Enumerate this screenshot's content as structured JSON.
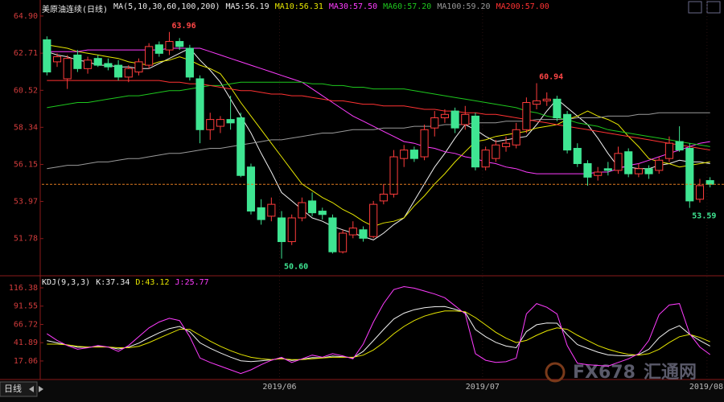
{
  "chart_data": [
    {
      "type": "candlestick",
      "title": "美原油连续(日线)",
      "indicator": "MA(5,10,30,60,100,200)",
      "ylim": [
        49.73,
        65.37
      ],
      "yticks": [
        {
          "value": 64.9,
          "label": "64.90"
        },
        62.71,
        60.52,
        58.34,
        56.15,
        53.97,
        51.78
      ],
      "xlim": [
        -0.5,
        65.5
      ],
      "xticks": [
        {
          "value": 22.8,
          "label": "2019/06"
        },
        {
          "value": 42.7,
          "label": "2019/07"
        },
        {
          "value": 64.7,
          "label": "2019/08"
        }
      ],
      "up_color": "#ff3c3c",
      "down_color": "#3fe592",
      "open": [
        63.5,
        62.2,
        61.2,
        62.6,
        61.8,
        62.4,
        62.1,
        62.0,
        61.3,
        61.6,
        62.0,
        63.2,
        62.9,
        63.4,
        63.0,
        61.2,
        58.2,
        58.4,
        58.8,
        58.9,
        56.0,
        53.6,
        53.1,
        53.0,
        51.6,
        53.0,
        54.0,
        53.4,
        53.0,
        51.0,
        52.0,
        52.3,
        51.9,
        54.0,
        54.4,
        56.5,
        57.0,
        56.6,
        58.3,
        58.9,
        59.3,
        58.5,
        59.0,
        56.0,
        56.5,
        57.2,
        57.3,
        58.2,
        59.7,
        59.9,
        60.0,
        59.1,
        57.1,
        56.2,
        55.5,
        55.9,
        55.8,
        56.9,
        55.6,
        55.9,
        55.8,
        56.5,
        57.5,
        57.1,
        54.1,
        55.2
      ],
      "high": [
        63.7,
        62.7,
        62.6,
        62.9,
        62.5,
        62.6,
        62.4,
        62.3,
        62.0,
        62.4,
        63.3,
        63.4,
        63.96,
        63.6,
        63.2,
        61.4,
        59.2,
        59.0,
        60.2,
        59.2,
        56.2,
        54.1,
        54.2,
        53.4,
        53.2,
        54.2,
        54.5,
        53.6,
        53.2,
        52.3,
        52.8,
        52.5,
        54.0,
        55.0,
        57.0,
        57.3,
        57.2,
        58.5,
        59.3,
        59.4,
        59.5,
        59.6,
        59.2,
        57.2,
        57.6,
        57.8,
        58.6,
        60.1,
        60.94,
        60.4,
        60.2,
        59.3,
        57.4,
        56.4,
        56.0,
        56.3,
        57.2,
        57.1,
        56.2,
        56.1,
        56.6,
        57.8,
        58.4,
        57.4,
        55.3,
        55.4
      ],
      "low": [
        61.4,
        61.9,
        60.6,
        61.6,
        61.5,
        61.9,
        61.7,
        61.1,
        61.0,
        61.4,
        61.8,
        62.5,
        62.6,
        62.9,
        61.1,
        57.4,
        57.6,
        58.0,
        58.2,
        55.4,
        53.2,
        52.6,
        52.8,
        50.6,
        51.4,
        52.8,
        53.1,
        52.9,
        50.9,
        50.9,
        51.8,
        51.6,
        51.8,
        53.8,
        54.2,
        56.0,
        56.3,
        56.4,
        57.8,
        58.6,
        58.0,
        58.2,
        55.8,
        55.8,
        56.3,
        56.9,
        57.1,
        58.0,
        59.4,
        59.6,
        58.7,
        56.8,
        56.0,
        54.9,
        55.2,
        55.5,
        55.6,
        55.4,
        55.4,
        55.3,
        55.6,
        56.3,
        56.9,
        53.59,
        53.9,
        54.8
      ],
      "close": [
        61.6,
        62.5,
        62.4,
        61.8,
        62.3,
        62.0,
        61.9,
        61.3,
        61.8,
        62.2,
        63.1,
        62.7,
        63.4,
        63.1,
        61.3,
        58.2,
        58.8,
        58.8,
        58.6,
        55.5,
        53.4,
        52.9,
        53.8,
        51.6,
        53.0,
        53.9,
        53.3,
        53.2,
        51.0,
        52.1,
        52.4,
        51.8,
        53.8,
        54.4,
        56.6,
        57.0,
        56.5,
        58.2,
        58.9,
        59.1,
        58.3,
        59.1,
        56.0,
        57.0,
        57.3,
        57.4,
        58.2,
        59.8,
        59.9,
        60.0,
        58.9,
        57.0,
        56.2,
        55.4,
        55.7,
        55.8,
        56.8,
        55.6,
        55.9,
        55.6,
        56.4,
        57.4,
        57.0,
        54.0,
        54.9,
        54.98
      ],
      "series": [
        {
          "name": "MA5:56.19",
          "color": "#f0f0f0",
          "values": [
            62.8,
            62.6,
            62.5,
            62.3,
            62.2,
            62.0,
            62.0,
            61.9,
            61.9,
            61.8,
            61.8,
            62.1,
            62.4,
            62.7,
            63.0,
            62.3,
            61.7,
            61.0,
            60.0,
            59.0,
            58.0,
            56.8,
            55.7,
            54.5,
            54.0,
            53.5,
            53.0,
            52.8,
            52.5,
            52.3,
            52.1,
            51.9,
            51.7,
            52.1,
            52.6,
            53.0,
            54.0,
            55.0,
            56.0,
            56.8,
            57.7,
            58.5,
            58.2,
            57.8,
            57.5,
            57.6,
            57.7,
            57.8,
            58.5,
            59.3,
            60.0,
            59.5,
            59.0,
            58.5,
            57.7,
            56.8,
            56.0,
            56.0,
            55.9,
            55.9,
            56.1,
            56.2,
            56.4,
            56.3,
            56.3,
            56.2
          ]
        },
        {
          "name": "MA10:56.31",
          "color": "#e6e600",
          "values": [
            63.2,
            63.1,
            63.0,
            62.8,
            62.7,
            62.6,
            62.5,
            62.4,
            62.2,
            62.1,
            62.0,
            62.2,
            62.3,
            62.5,
            62.3,
            62.0,
            61.8,
            61.5,
            60.7,
            59.8,
            59.0,
            58.2,
            57.4,
            56.6,
            55.8,
            55.0,
            54.6,
            54.2,
            53.9,
            53.5,
            53.2,
            52.8,
            52.5,
            52.7,
            52.8,
            53.0,
            53.7,
            54.3,
            55.0,
            55.6,
            56.3,
            56.9,
            57.5,
            57.6,
            57.8,
            57.9,
            58.0,
            58.1,
            58.3,
            58.4,
            58.5,
            58.8,
            59.0,
            59.3,
            59.0,
            58.8,
            58.5,
            57.8,
            57.2,
            56.5,
            56.3,
            56.2,
            56.0,
            56.1,
            56.2,
            56.3
          ]
        },
        {
          "name": "MA30:57.50",
          "color": "#ff3cff",
          "values": [
            62.8,
            62.8,
            62.8,
            62.8,
            62.9,
            62.9,
            62.9,
            62.9,
            62.9,
            62.9,
            62.9,
            62.9,
            63.0,
            63.0,
            63.0,
            63.0,
            62.8,
            62.6,
            62.4,
            62.2,
            62.0,
            61.8,
            61.6,
            61.4,
            61.2,
            61.0,
            60.6,
            60.2,
            59.8,
            59.4,
            59.0,
            58.7,
            58.4,
            58.1,
            57.8,
            57.5,
            57.4,
            57.2,
            57.1,
            56.9,
            56.8,
            56.6,
            56.5,
            56.3,
            56.2,
            56.0,
            55.9,
            55.7,
            55.6,
            55.6,
            55.6,
            55.6,
            55.6,
            55.6,
            55.7,
            55.7,
            55.9,
            56.1,
            56.2,
            56.4,
            56.6,
            56.8,
            57.0,
            57.2,
            57.4,
            57.5
          ]
        },
        {
          "name": "MA60:57.20",
          "color": "#1ec81e",
          "values": [
            59.5,
            59.6,
            59.7,
            59.8,
            59.8,
            59.9,
            60.0,
            60.1,
            60.2,
            60.2,
            60.3,
            60.4,
            60.5,
            60.5,
            60.6,
            60.7,
            60.8,
            60.8,
            60.9,
            61.0,
            61.0,
            61.0,
            61.0,
            61.0,
            61.0,
            61.0,
            60.9,
            60.9,
            60.8,
            60.8,
            60.7,
            60.7,
            60.6,
            60.6,
            60.6,
            60.6,
            60.5,
            60.4,
            60.3,
            60.2,
            60.1,
            60.0,
            59.9,
            59.8,
            59.7,
            59.6,
            59.5,
            59.3,
            59.2,
            59.0,
            58.9,
            58.8,
            58.6,
            58.5,
            58.4,
            58.2,
            58.1,
            58.0,
            57.9,
            57.8,
            57.7,
            57.6,
            57.5,
            57.4,
            57.3,
            57.2
          ]
        },
        {
          "name": "MA100:59.20",
          "color": "#9a9a9a",
          "values": [
            55.9,
            56.0,
            56.1,
            56.1,
            56.2,
            56.3,
            56.3,
            56.4,
            56.5,
            56.5,
            56.6,
            56.7,
            56.8,
            56.8,
            56.9,
            57.0,
            57.1,
            57.1,
            57.2,
            57.3,
            57.4,
            57.5,
            57.6,
            57.6,
            57.7,
            57.8,
            57.9,
            58.0,
            58.0,
            58.1,
            58.2,
            58.2,
            58.2,
            58.3,
            58.3,
            58.3,
            58.4,
            58.4,
            58.4,
            58.5,
            58.5,
            58.5,
            58.6,
            58.6,
            58.6,
            58.7,
            58.7,
            58.7,
            58.8,
            58.8,
            58.8,
            58.8,
            58.9,
            58.9,
            58.9,
            59.0,
            59.0,
            59.0,
            59.1,
            59.1,
            59.2,
            59.2,
            59.2,
            59.2,
            59.2,
            59.2
          ]
        },
        {
          "name": "MA200:57.00",
          "color": "#ff3232",
          "values": [
            61.1,
            61.1,
            61.1,
            61.1,
            61.1,
            61.1,
            61.1,
            61.1,
            61.1,
            61.1,
            61.1,
            61.1,
            61.0,
            61.0,
            60.9,
            60.9,
            60.8,
            60.7,
            60.6,
            60.5,
            60.5,
            60.4,
            60.3,
            60.3,
            60.2,
            60.2,
            60.1,
            60.0,
            59.9,
            59.9,
            59.8,
            59.7,
            59.7,
            59.6,
            59.6,
            59.6,
            59.5,
            59.4,
            59.4,
            59.3,
            59.3,
            59.2,
            59.2,
            59.1,
            59.1,
            59.0,
            58.9,
            58.8,
            58.7,
            58.6,
            58.5,
            58.4,
            58.3,
            58.2,
            58.1,
            58.0,
            57.9,
            57.8,
            57.7,
            57.6,
            57.5,
            57.4,
            57.3,
            57.2,
            57.1,
            57.0
          ]
        }
      ],
      "annotations": [
        {
          "x": 12,
          "value": 63.96,
          "label": "63.96",
          "color": "#ff4646",
          "side": "above"
        },
        {
          "x": 23,
          "value": 50.6,
          "label": "50.60",
          "color": "#3fe592",
          "side": "below"
        },
        {
          "x": 48,
          "value": 60.94,
          "label": "60.94",
          "color": "#ff4646",
          "side": "above"
        },
        {
          "x": 63,
          "value": 53.59,
          "label": "53.59",
          "color": "#3fe592",
          "side": "below"
        }
      ],
      "reference_line": 54.98,
      "reference_color": "#e07a20",
      "period_button": "日线",
      "watermark": [
        "FX678",
        "汇通网"
      ]
    },
    {
      "type": "line",
      "title": "KDJ(9,3,3)",
      "ylim": [
        -5.92,
        125.13
      ],
      "yticks": [
        116.38,
        91.55,
        66.72,
        41.89,
        17.06
      ],
      "xlim": [
        -0.5,
        65.5
      ],
      "series": [
        {
          "name": "K:37.34",
          "color": "#f0f0f0",
          "values": [
            44.7,
            41.7,
            38.7,
            35.7,
            35.7,
            36.7,
            36,
            33.3,
            36,
            41.3,
            48.7,
            55.3,
            61,
            64,
            56.7,
            41.7,
            34.3,
            28,
            22.3,
            17.3,
            16.3,
            17.3,
            18.7,
            20.7,
            17.7,
            19.3,
            21.7,
            21.3,
            23.7,
            22.7,
            21.3,
            30,
            44.7,
            59.7,
            74,
            82,
            86.7,
            89.3,
            90.7,
            91,
            87.3,
            83,
            59.7,
            50,
            42.3,
            37.3,
            35,
            57,
            66.3,
            68.7,
            68.3,
            52.7,
            39.3,
            34,
            29,
            25.3,
            24.3,
            24,
            25.7,
            33,
            48.7,
            59,
            65,
            53.3,
            44.7,
            37.34
          ]
        },
        {
          "name": "D:43.12",
          "color": "#e6e600",
          "values": [
            40,
            40,
            39,
            37,
            36,
            36,
            36,
            35,
            35,
            37,
            42,
            48,
            54,
            60,
            60,
            52,
            44,
            37,
            31,
            26,
            22,
            20,
            19,
            20,
            19,
            19,
            20,
            21,
            22,
            22,
            22,
            25,
            32,
            42,
            54,
            64,
            72,
            78,
            82,
            85,
            85,
            84,
            76,
            66,
            56,
            48,
            42,
            45,
            52,
            58,
            62,
            60,
            52,
            45,
            38,
            33,
            29,
            26,
            25,
            27,
            33,
            42,
            50,
            53,
            49,
            43.12
          ]
        },
        {
          "name": "J:25.77",
          "color": "#ff3cff",
          "values": [
            54,
            45,
            38,
            33,
            35,
            38,
            36,
            30,
            38,
            50,
            62,
            70,
            75,
            72,
            50,
            21,
            15,
            10,
            5,
            0,
            5,
            12,
            18,
            22,
            15,
            20,
            25,
            22,
            27,
            24,
            20,
            40,
            70,
            95,
            114,
            118,
            116,
            112,
            108,
            103,
            92,
            81,
            27,
            18,
            15,
            16,
            21,
            81,
            95,
            90,
            81,
            38,
            14,
            12,
            11,
            10,
            15,
            20,
            27,
            45,
            80,
            93,
            95,
            54,
            36,
            25.77
          ]
        }
      ]
    }
  ]
}
